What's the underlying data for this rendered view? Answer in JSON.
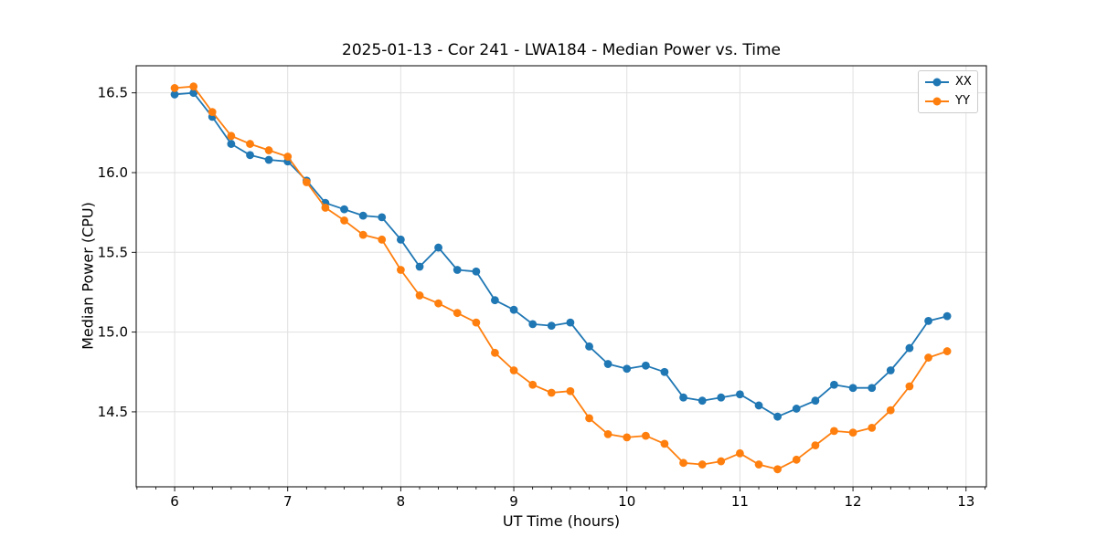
{
  "figure": {
    "title": "2025-01-13 - Cor 241 - LWA184 - Median Power vs. Time",
    "xlabel": "UT Time (hours)",
    "ylabel": "Median Power (CPU)"
  },
  "legend": {
    "items": [
      {
        "label": "XX",
        "color": "#1f77b4"
      },
      {
        "label": "YY",
        "color": "#ff7f0e"
      }
    ]
  },
  "chart_data": {
    "type": "line",
    "title": "2025-01-13 - Cor 241 - LWA184 - Median Power vs. Time",
    "xlabel": "UT Time (hours)",
    "ylabel": "Median Power (CPU)",
    "x": [
      6.0,
      6.167,
      6.333,
      6.5,
      6.667,
      6.833,
      7.0,
      7.167,
      7.333,
      7.5,
      7.667,
      7.833,
      8.0,
      8.167,
      8.333,
      8.5,
      8.667,
      8.833,
      9.0,
      9.167,
      9.333,
      9.5,
      9.667,
      9.833,
      10.0,
      10.167,
      10.333,
      10.5,
      10.667,
      10.833,
      11.0,
      11.167,
      11.333,
      11.5,
      11.667,
      11.833,
      12.0,
      12.167,
      12.333,
      12.5,
      12.667,
      12.833
    ],
    "series": [
      {
        "name": "XX",
        "color": "#1f77b4",
        "marker": "circle",
        "values": [
          16.49,
          16.5,
          16.35,
          16.18,
          16.11,
          16.08,
          16.07,
          15.95,
          15.81,
          15.77,
          15.73,
          15.72,
          15.58,
          15.41,
          15.53,
          15.39,
          15.38,
          15.2,
          15.14,
          15.05,
          15.04,
          15.06,
          14.91,
          14.8,
          14.77,
          14.79,
          14.75,
          14.59,
          14.57,
          14.59,
          14.61,
          14.54,
          14.47,
          14.52,
          14.57,
          14.67,
          14.65,
          14.65,
          14.76,
          14.9,
          15.07,
          15.1
        ]
      },
      {
        "name": "YY",
        "color": "#ff7f0e",
        "marker": "circle",
        "values": [
          16.53,
          16.54,
          16.38,
          16.23,
          16.18,
          16.14,
          16.1,
          15.94,
          15.78,
          15.7,
          15.61,
          15.58,
          15.39,
          15.23,
          15.18,
          15.12,
          15.06,
          14.87,
          14.76,
          14.67,
          14.62,
          14.63,
          14.46,
          14.36,
          14.34,
          14.35,
          14.3,
          14.18,
          14.17,
          14.19,
          14.24,
          14.17,
          14.14,
          14.2,
          14.29,
          14.38,
          14.37,
          14.4,
          14.51,
          14.66,
          14.84,
          14.88
        ]
      }
    ],
    "xlim": [
      5.66,
      13.18
    ],
    "ylim": [
      14.03,
      16.67
    ],
    "xticks": [
      6,
      7,
      8,
      9,
      10,
      11,
      12,
      13
    ],
    "yticks": [
      14.5,
      15.0,
      15.5,
      16.0,
      16.5
    ],
    "x_minor_tick_step": 0.16667,
    "grid": true,
    "grid_color": "#e0e0e0",
    "legend_position": "upper right"
  }
}
